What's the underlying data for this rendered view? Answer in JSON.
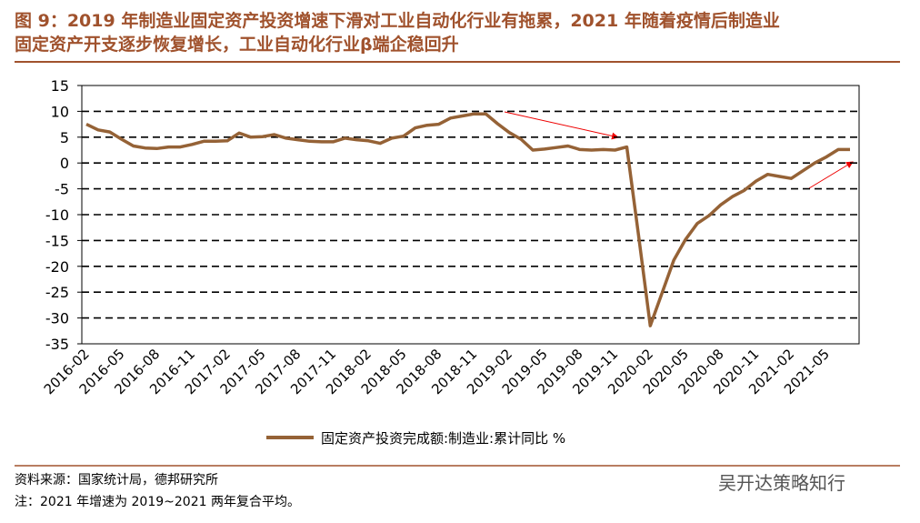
{
  "chart_data": {
    "type": "line",
    "title": [
      "图 9：2019 年制造业固定资产投资增速下滑对工业自动化行业有拖累，2021 年随着疫情后制造业",
      "固定资产开支逐步恢复增长，工业自动化行业β端企稳回升"
    ],
    "categories": [
      "2016-02",
      null,
      null,
      "2016-05",
      null,
      null,
      "2016-08",
      null,
      null,
      "2016-11",
      null,
      null,
      "2017-02",
      null,
      null,
      "2017-05",
      null,
      null,
      "2017-08",
      null,
      null,
      "2017-11",
      null,
      null,
      "2018-02",
      null,
      null,
      "2018-05",
      null,
      null,
      "2018-08",
      null,
      null,
      "2018-11",
      null,
      null,
      "2019-02",
      null,
      null,
      "2019-05",
      null,
      null,
      "2019-08",
      null,
      null,
      "2019-11",
      null,
      null,
      "2020-02",
      null,
      null,
      "2020-05",
      null,
      null,
      "2020-08",
      null,
      null,
      "2020-11",
      null,
      null,
      "2021-02",
      null,
      null,
      "2021-05",
      null,
      null
    ],
    "series": [
      {
        "name": "固定资产投资完成额:制造业:累计同比 %",
        "color": "#956236",
        "values": [
          7.5,
          6.4,
          6.0,
          4.6,
          3.3,
          2.9,
          2.8,
          3.1,
          3.1,
          3.6,
          4.2,
          4.2,
          4.3,
          5.8,
          5.0,
          5.1,
          5.5,
          4.8,
          4.5,
          4.2,
          4.1,
          4.1,
          4.8,
          4.5,
          4.3,
          3.8,
          4.8,
          5.2,
          6.8,
          7.3,
          7.5,
          8.7,
          9.1,
          9.5,
          9.5,
          7.6,
          5.9,
          4.6,
          2.5,
          2.7,
          3.0,
          3.3,
          2.6,
          2.5,
          2.6,
          2.5,
          3.1,
          -14,
          -31.5,
          -25.2,
          -18.8,
          -14.8,
          -11.7,
          -10.2,
          -8.1,
          -6.5,
          -5.3,
          -3.5,
          -2.2,
          -2.6,
          -3.0,
          -1.5,
          0.0,
          1.2,
          2.6,
          2.6
        ]
      }
    ],
    "ylim": [
      -35,
      15
    ],
    "yticks": [
      -35,
      -30,
      -25,
      -20,
      -15,
      -10,
      -5,
      0,
      5,
      10,
      15
    ],
    "grid": true,
    "source": "资料来源：国家统计局，德邦研究所",
    "note": "注：2021 年增速为 2019~2021 两年复合平均。",
    "watermark": "吴开达策略知行"
  }
}
